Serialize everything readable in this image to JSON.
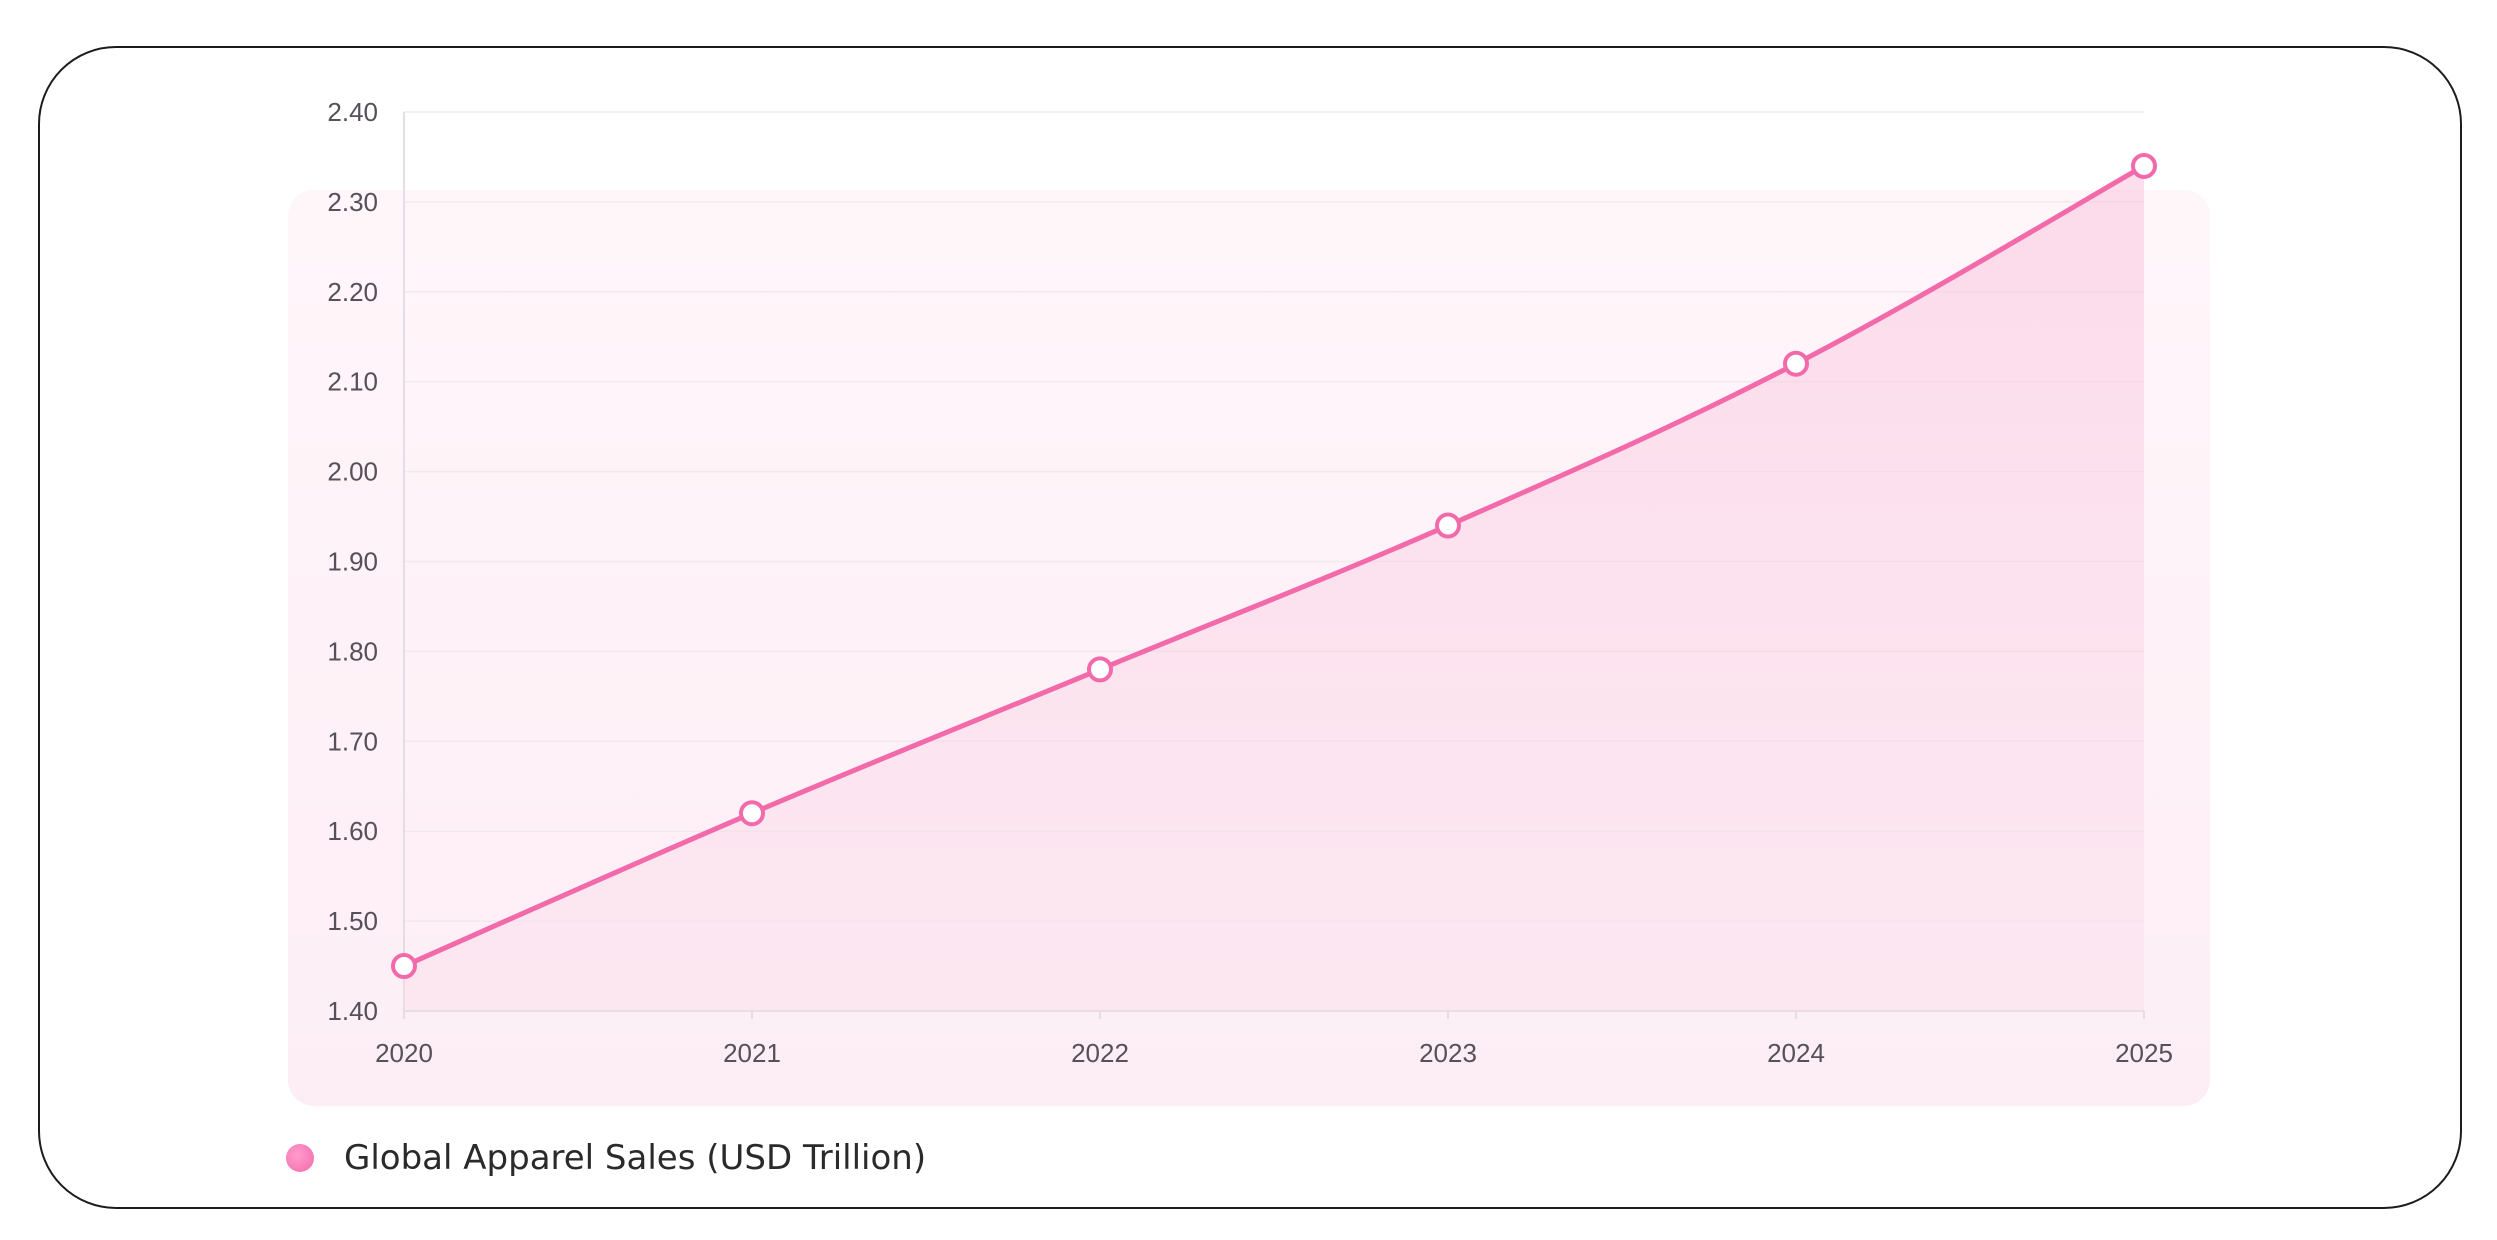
{
  "chart_data": {
    "type": "area",
    "categories": [
      "2020",
      "2021",
      "2022",
      "2023",
      "2024",
      "2025"
    ],
    "series": [
      {
        "name": "Global Apparel Sales (USD Trillion)",
        "values": [
          1.45,
          1.62,
          1.78,
          1.94,
          2.12,
          2.34
        ]
      }
    ],
    "ylim": [
      1.4,
      2.4
    ],
    "yticks": [
      "1.40",
      "1.50",
      "1.60",
      "1.70",
      "1.80",
      "1.90",
      "2.00",
      "2.10",
      "2.20",
      "2.30",
      "2.40"
    ],
    "grid": true,
    "legend_position": "bottom-left",
    "colors": {
      "line": "#f36aaa",
      "fill": "#fbd9e9",
      "marker_fill": "#ffffff",
      "grid": "#f1e9ee",
      "axis": "#e4dde3"
    }
  },
  "legend": {
    "label": "Global Apparel Sales (USD Trillion)"
  }
}
